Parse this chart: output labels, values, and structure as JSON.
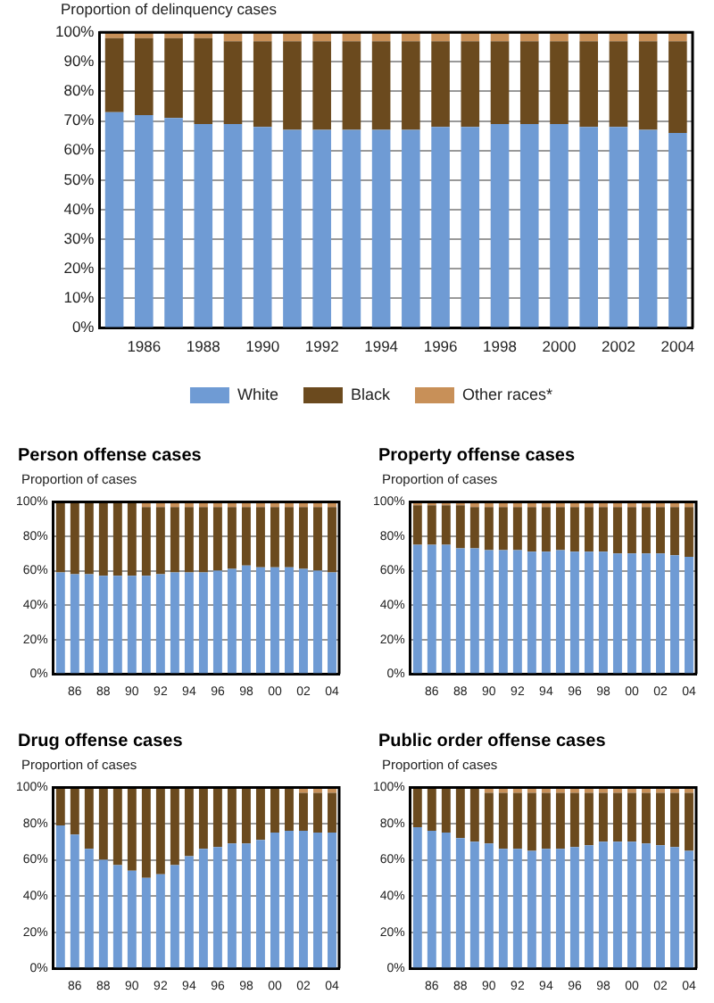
{
  "chart_data": [
    {
      "type": "bar",
      "stacked": true,
      "ylabel": "Proportion of delinquency cases",
      "categories": [
        null,
        "1986",
        null,
        "1988",
        null,
        "1990",
        null,
        "1992",
        null,
        "1994",
        null,
        "1996",
        null,
        "1998",
        null,
        "2000",
        null,
        "2002",
        null,
        "2004"
      ],
      "ylim": [
        0,
        100
      ],
      "yticks": [
        {
          "value": 0,
          "label": "0%"
        },
        {
          "value": 10,
          "label": "10%"
        },
        {
          "value": 20,
          "label": "20%"
        },
        {
          "value": 30,
          "label": "30%"
        },
        {
          "value": 40,
          "label": "40%"
        },
        {
          "value": 50,
          "label": "50%"
        },
        {
          "value": 60,
          "label": "60%"
        },
        {
          "value": 70,
          "label": "70%"
        },
        {
          "value": 80,
          "label": "80%"
        },
        {
          "value": 90,
          "label": "90%"
        },
        {
          "value": 100,
          "label": "100%"
        }
      ],
      "grid": "y",
      "legend": "bottom",
      "series": [
        {
          "name": "White",
          "color": "#6f9bd4",
          "values": [
            73,
            72,
            71,
            69,
            69,
            68,
            67,
            67,
            67,
            67,
            67,
            68,
            68,
            69,
            69,
            69,
            68,
            68,
            67,
            66
          ]
        },
        {
          "name": "Black",
          "color": "#6b4a1e",
          "values": [
            25,
            26,
            27,
            29,
            28,
            29,
            30,
            30,
            30,
            30,
            30,
            29,
            29,
            28,
            28,
            28,
            29,
            29,
            30,
            31
          ]
        },
        {
          "name": "Other races*",
          "color": "#c89058",
          "values": [
            2,
            2,
            2,
            2,
            3,
            3,
            3,
            3,
            3,
            3,
            3,
            3,
            3,
            3,
            3,
            3,
            3,
            3,
            3,
            3
          ]
        }
      ]
    },
    {
      "type": "bar",
      "stacked": true,
      "title": "Person offense cases",
      "ylabel": "Proportion of cases",
      "categories": [
        null,
        "86",
        null,
        "88",
        null,
        "90",
        null,
        "92",
        null,
        "94",
        null,
        "96",
        null,
        "98",
        null,
        "00",
        null,
        "02",
        null,
        "04"
      ],
      "ylim": [
        0,
        100
      ],
      "yticks": [
        {
          "value": 0,
          "label": "0%"
        },
        {
          "value": 20,
          "label": "20%"
        },
        {
          "value": 40,
          "label": "40%"
        },
        {
          "value": 60,
          "label": "60%"
        },
        {
          "value": 80,
          "label": "80%"
        },
        {
          "value": 100,
          "label": "100%"
        }
      ],
      "grid": "y",
      "series": [
        {
          "color": "#6f9bd4",
          "values": [
            59,
            58,
            58,
            57,
            57,
            57,
            57,
            58,
            59,
            59,
            59,
            60,
            61,
            63,
            62,
            62,
            62,
            61,
            60,
            59
          ]
        },
        {
          "color": "#6b4a1e",
          "values": [
            41,
            42,
            42,
            43,
            43,
            43,
            40,
            39,
            38,
            38,
            38,
            37,
            36,
            34,
            35,
            35,
            35,
            36,
            37,
            38
          ]
        },
        {
          "color": "#c89058",
          "values": [
            null,
            null,
            null,
            null,
            null,
            null,
            3,
            3,
            3,
            3,
            3,
            3,
            3,
            3,
            3,
            3,
            3,
            3,
            3,
            3
          ]
        }
      ]
    },
    {
      "type": "bar",
      "stacked": true,
      "title": "Property offense cases",
      "ylabel": "Proportion of cases",
      "categories": [
        null,
        "86",
        null,
        "88",
        null,
        "90",
        null,
        "92",
        null,
        "94",
        null,
        "96",
        null,
        "98",
        null,
        "00",
        null,
        "02",
        null,
        "04"
      ],
      "ylim": [
        0,
        100
      ],
      "yticks": [
        {
          "value": 0,
          "label": "0%"
        },
        {
          "value": 20,
          "label": "20%"
        },
        {
          "value": 40,
          "label": "40%"
        },
        {
          "value": 60,
          "label": "60%"
        },
        {
          "value": 80,
          "label": "80%"
        },
        {
          "value": 100,
          "label": "100%"
        }
      ],
      "grid": "y",
      "series": [
        {
          "color": "#6f9bd4",
          "values": [
            75,
            75,
            75,
            73,
            73,
            72,
            72,
            72,
            71,
            71,
            72,
            71,
            71,
            71,
            70,
            70,
            70,
            70,
            69,
            68
          ]
        },
        {
          "color": "#6b4a1e",
          "values": [
            23,
            23,
            23,
            25,
            24,
            25,
            25,
            25,
            26,
            26,
            25,
            26,
            26,
            26,
            27,
            27,
            27,
            27,
            28,
            29
          ]
        },
        {
          "color": "#c89058",
          "values": [
            2,
            2,
            2,
            2,
            3,
            3,
            3,
            3,
            3,
            3,
            3,
            3,
            3,
            3,
            3,
            3,
            3,
            3,
            3,
            3
          ]
        }
      ]
    },
    {
      "type": "bar",
      "stacked": true,
      "title": "Drug offense cases",
      "ylabel": "Proportion of cases",
      "categories": [
        null,
        "86",
        null,
        "88",
        null,
        "90",
        null,
        "92",
        null,
        "94",
        null,
        "96",
        null,
        "98",
        null,
        "00",
        null,
        "02",
        null,
        "04"
      ],
      "ylim": [
        0,
        100
      ],
      "yticks": [
        {
          "value": 0,
          "label": "0%"
        },
        {
          "value": 20,
          "label": "20%"
        },
        {
          "value": 40,
          "label": "40%"
        },
        {
          "value": 60,
          "label": "60%"
        },
        {
          "value": 80,
          "label": "80%"
        },
        {
          "value": 100,
          "label": "100%"
        }
      ],
      "grid": "y",
      "series": [
        {
          "color": "#6f9bd4",
          "values": [
            79,
            74,
            66,
            60,
            57,
            54,
            50,
            52,
            57,
            62,
            66,
            67,
            69,
            69,
            71,
            75,
            76,
            76,
            75,
            75
          ]
        },
        {
          "color": "#6b4a1e",
          "values": [
            21,
            26,
            34,
            40,
            43,
            46,
            50,
            48,
            43,
            38,
            34,
            33,
            31,
            31,
            29,
            25,
            24,
            21,
            22,
            22
          ]
        },
        {
          "color": "#c89058",
          "values": [
            null,
            null,
            null,
            null,
            null,
            null,
            null,
            null,
            null,
            null,
            null,
            null,
            null,
            null,
            null,
            null,
            null,
            3,
            3,
            3
          ]
        }
      ]
    },
    {
      "type": "bar",
      "stacked": true,
      "title": "Public order offense cases",
      "ylabel": "Proportion of cases",
      "categories": [
        null,
        "86",
        null,
        "88",
        null,
        "90",
        null,
        "92",
        null,
        "94",
        null,
        "96",
        null,
        "98",
        null,
        "00",
        null,
        "02",
        null,
        "04"
      ],
      "ylim": [
        0,
        100
      ],
      "yticks": [
        {
          "value": 0,
          "label": "0%"
        },
        {
          "value": 20,
          "label": "20%"
        },
        {
          "value": 40,
          "label": "40%"
        },
        {
          "value": 60,
          "label": "60%"
        },
        {
          "value": 80,
          "label": "80%"
        },
        {
          "value": 100,
          "label": "100%"
        }
      ],
      "grid": "y",
      "series": [
        {
          "color": "#6f9bd4",
          "values": [
            78,
            76,
            75,
            72,
            70,
            69,
            66,
            66,
            65,
            66,
            66,
            67,
            68,
            70,
            70,
            70,
            69,
            68,
            67,
            65
          ]
        },
        {
          "color": "#6b4a1e",
          "values": [
            22,
            24,
            25,
            28,
            30,
            28,
            31,
            31,
            32,
            31,
            31,
            30,
            29,
            27,
            27,
            27,
            28,
            29,
            30,
            32
          ]
        },
        {
          "color": "#c89058",
          "values": [
            null,
            null,
            null,
            null,
            null,
            3,
            3,
            3,
            3,
            3,
            3,
            3,
            3,
            3,
            3,
            3,
            3,
            3,
            3,
            3
          ]
        }
      ]
    }
  ]
}
